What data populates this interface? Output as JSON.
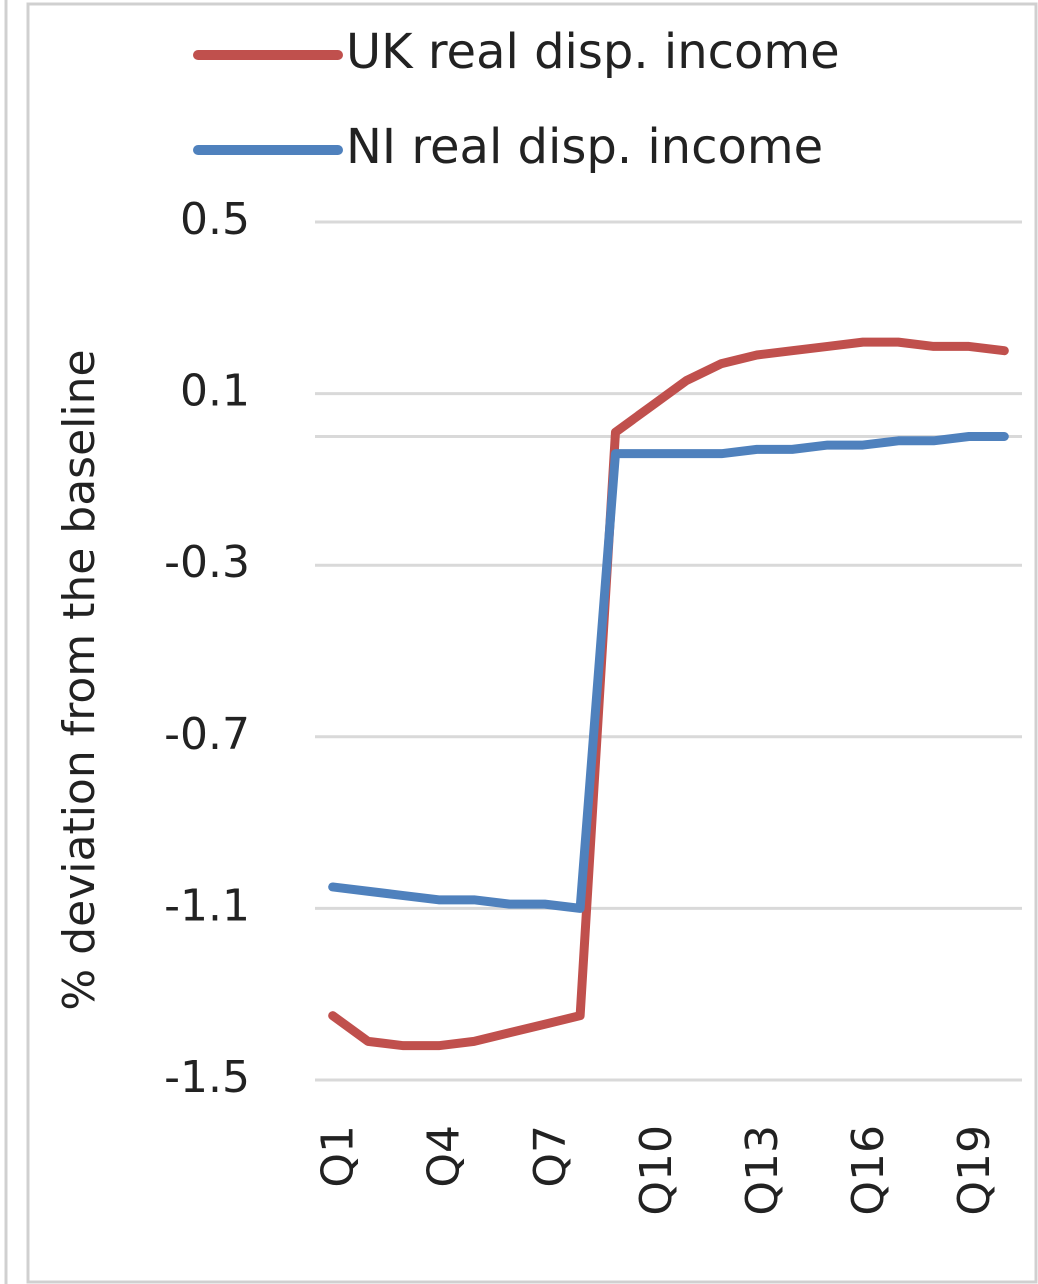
{
  "chart_data": {
    "type": "line",
    "y_label": "% deviation from the baseline",
    "categories": [
      "Q1",
      null,
      null,
      "Q4",
      null,
      null,
      "Q7",
      null,
      null,
      "Q10",
      null,
      null,
      "Q13",
      null,
      null,
      "Q16",
      null,
      null,
      "Q19",
      null
    ],
    "series": [
      {
        "name": "UK real disp. income",
        "color": "#c0504d",
        "values": [
          -1.35,
          -1.41,
          -1.42,
          -1.42,
          -1.41,
          -1.39,
          -1.37,
          -1.35,
          0.01,
          0.07,
          0.13,
          0.17,
          0.19,
          0.2,
          0.21,
          0.22,
          0.22,
          0.21,
          0.21,
          0.2
        ]
      },
      {
        "name": "NI real disp. income",
        "color": "#4f81bd",
        "values": [
          -1.05,
          -1.06,
          -1.07,
          -1.08,
          -1.08,
          -1.09,
          -1.09,
          -1.1,
          -0.04,
          -0.04,
          -0.04,
          -0.04,
          -0.03,
          -0.03,
          -0.02,
          -0.02,
          -0.01,
          -0.01,
          0.0,
          0.0
        ]
      }
    ],
    "ylim": [
      -1.5,
      0.5
    ],
    "yticks": [
      -1.5,
      -1.1,
      -0.7,
      -0.3,
      0.1,
      0.5
    ],
    "grid": true,
    "legend": "top"
  }
}
